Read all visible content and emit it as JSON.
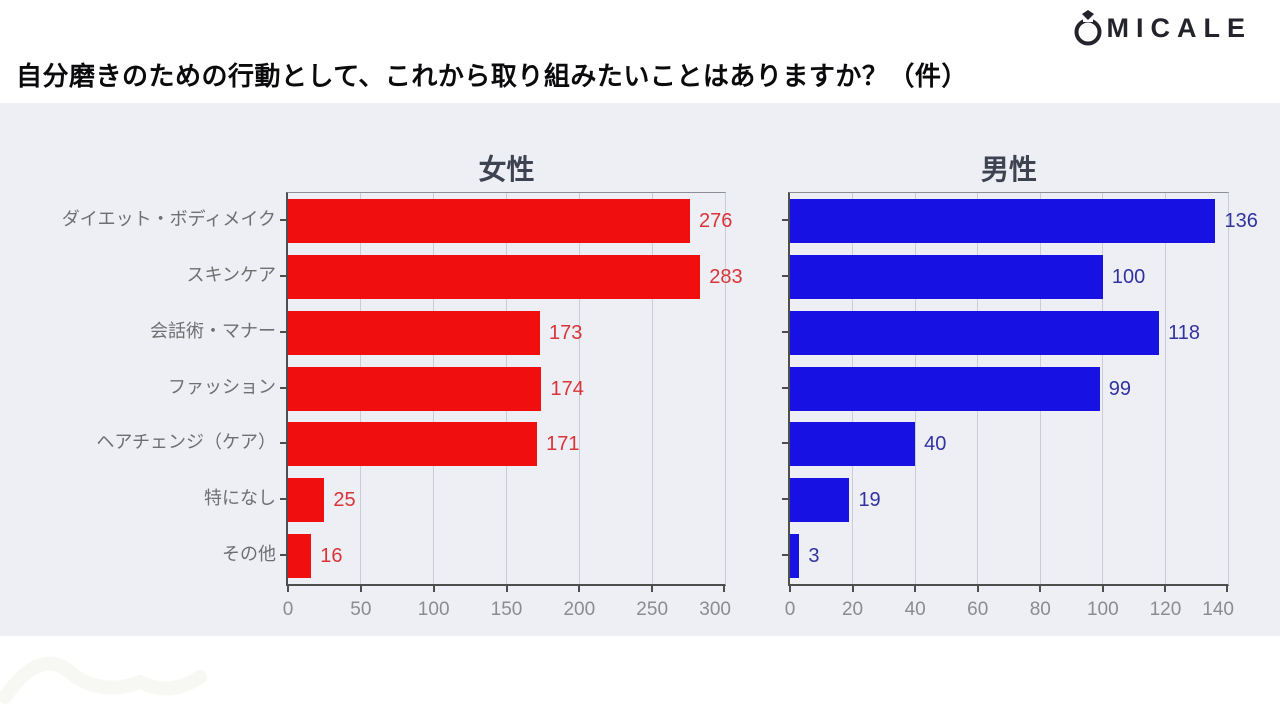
{
  "logo": {
    "brand": "OMICALE",
    "letters": "MICALE",
    "icon": "ring-icon"
  },
  "title": "自分磨きのための行動として、これから取り組みたいことはありますか？（件）",
  "colors": {
    "panel_bg": "#edeff4",
    "grid": "#c8ccd4",
    "axis": "#4e4e4e",
    "category_label": "#6f6f71",
    "tick_label": "#8c8c8e",
    "chart_title": "#3d4350",
    "female_bar": "#f10e0e",
    "female_value_label": "#d8343a",
    "male_bar": "#1712e3",
    "male_value_label": "#32329f"
  },
  "chart_data": [
    {
      "type": "bar",
      "orientation": "horizontal",
      "title": "女性",
      "categories": [
        "ダイエット・ボディメイク",
        "スキンケア",
        "会話術・マナー",
        "ファッション",
        "ヘアチェンジ（ケア）",
        "特になし",
        "その他"
      ],
      "values": [
        276,
        283,
        173,
        174,
        171,
        25,
        16
      ],
      "xlim": [
        0,
        300
      ],
      "xticks": [
        0,
        50,
        100,
        150,
        200,
        250,
        300
      ],
      "grid": true,
      "legend": "none",
      "bar_color": "#f10e0e",
      "label_color": "#d8343a",
      "show_category_labels": true
    },
    {
      "type": "bar",
      "orientation": "horizontal",
      "title": "男性",
      "categories": [
        "ダイエット・ボディメイク",
        "スキンケア",
        "会話術・マナー",
        "ファッション",
        "ヘアチェンジ（ケア）",
        "特になし",
        "その他"
      ],
      "values": [
        136,
        100,
        118,
        99,
        40,
        19,
        3
      ],
      "xlim": [
        0,
        140
      ],
      "xticks": [
        0,
        20,
        40,
        60,
        80,
        100,
        120,
        140
      ],
      "grid": true,
      "legend": "none",
      "bar_color": "#1712e3",
      "label_color": "#32329f",
      "show_category_labels": false
    }
  ]
}
